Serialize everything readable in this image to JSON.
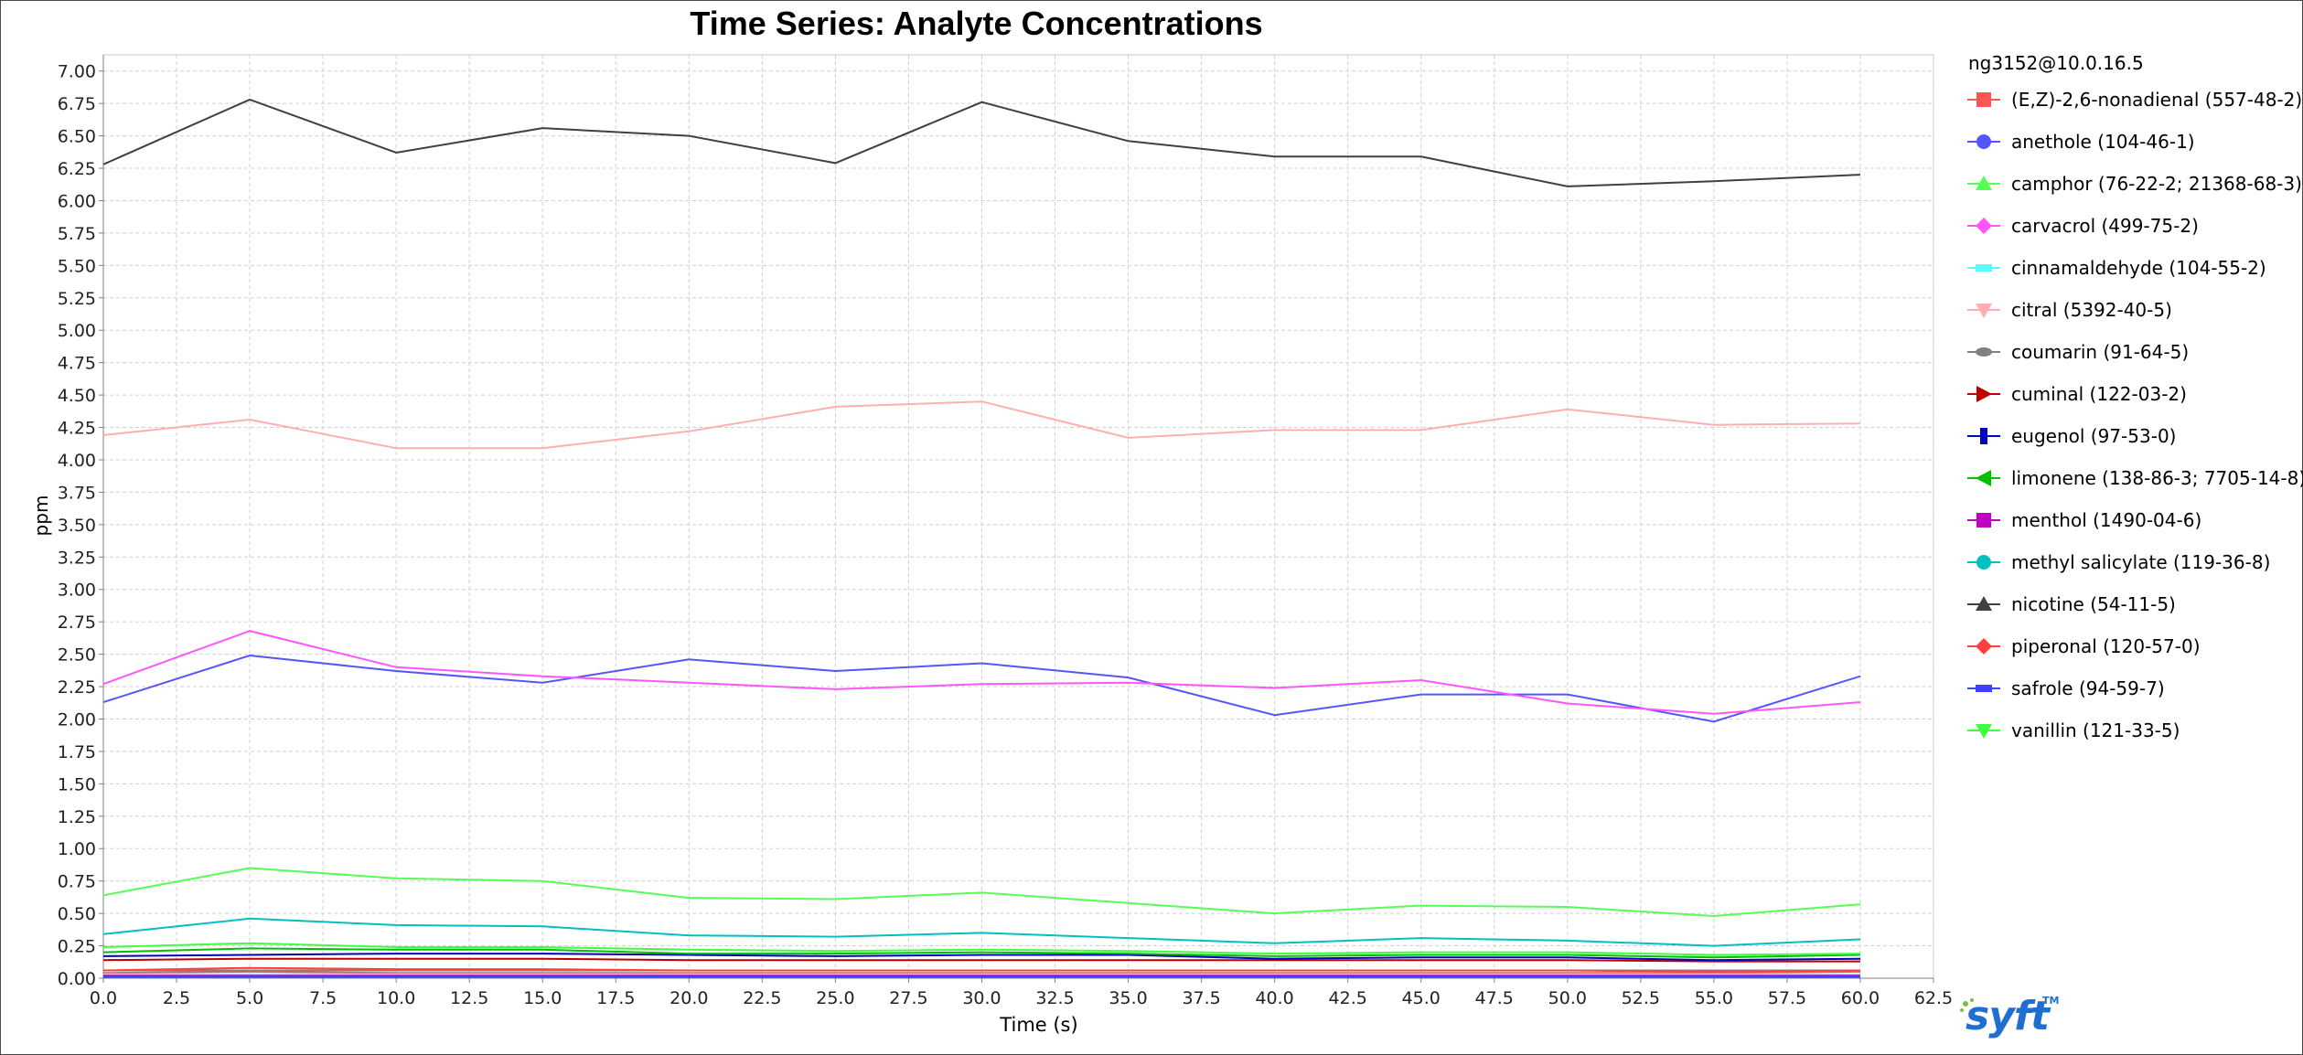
{
  "chart_data": {
    "type": "line",
    "title": "Time Series: Analyte Concentrations",
    "xlabel": "Time (s)",
    "ylabel": "ppm",
    "xlim": [
      0,
      62.5
    ],
    "ylim": [
      0,
      7.125
    ],
    "x_ticks": [
      "0.0",
      "2.5",
      "5.0",
      "7.5",
      "10.0",
      "12.5",
      "15.0",
      "17.5",
      "20.0",
      "22.5",
      "25.0",
      "27.5",
      "30.0",
      "32.5",
      "35.0",
      "37.5",
      "40.0",
      "42.5",
      "45.0",
      "47.5",
      "50.0",
      "52.5",
      "55.0",
      "57.5",
      "60.0",
      "62.5"
    ],
    "y_ticks": [
      "0.00",
      "0.25",
      "0.50",
      "0.75",
      "1.00",
      "1.25",
      "1.50",
      "1.75",
      "2.00",
      "2.25",
      "2.50",
      "2.75",
      "3.00",
      "3.25",
      "3.50",
      "3.75",
      "4.00",
      "4.25",
      "4.50",
      "4.75",
      "5.00",
      "5.25",
      "5.50",
      "5.75",
      "6.00",
      "6.25",
      "6.50",
      "6.75",
      "7.00"
    ],
    "grid": true,
    "legend_position": "right",
    "legend_title": "ng3152@10.0.16.5",
    "x": [
      0,
      5,
      10,
      15,
      20,
      25,
      30,
      35,
      40,
      45,
      50,
      55,
      60
    ],
    "series": [
      {
        "name": "(E,Z)-2,6-nonadienal (557-48-2)",
        "color": "#ff5555",
        "marker": "square",
        "values": [
          0.04,
          0.05,
          0.04,
          0.04,
          0.04,
          0.04,
          0.04,
          0.04,
          0.04,
          0.04,
          0.04,
          0.04,
          0.05
        ]
      },
      {
        "name": "anethole (104-46-1)",
        "color": "#5555ff",
        "marker": "circle",
        "values": [
          2.13,
          2.49,
          2.37,
          2.28,
          2.46,
          2.37,
          2.43,
          2.32,
          2.03,
          2.19,
          2.19,
          1.98,
          2.33
        ]
      },
      {
        "name": "camphor (76-22-2; 21368-68-3)",
        "color": "#55ff55",
        "marker": "triangle-up",
        "values": [
          0.64,
          0.85,
          0.77,
          0.75,
          0.62,
          0.61,
          0.66,
          0.58,
          0.5,
          0.56,
          0.55,
          0.48,
          0.57
        ]
      },
      {
        "name": "carvacrol (499-75-2)",
        "color": "#ff55ff",
        "marker": "diamond",
        "values": [
          2.27,
          2.68,
          2.4,
          2.33,
          2.28,
          2.23,
          2.27,
          2.28,
          2.24,
          2.3,
          2.12,
          2.04,
          2.13
        ]
      },
      {
        "name": "cinnamaldehyde (104-55-2)",
        "color": "#55ffff",
        "marker": "rect-horizontal",
        "values": [
          0.03,
          0.03,
          0.03,
          0.03,
          0.03,
          0.03,
          0.03,
          0.03,
          0.03,
          0.03,
          0.03,
          0.03,
          0.03
        ]
      },
      {
        "name": "citral (5392-40-5)",
        "color": "#ffafaf",
        "marker": "triangle-down",
        "values": [
          4.19,
          4.31,
          4.09,
          4.09,
          4.22,
          4.41,
          4.45,
          4.17,
          4.23,
          4.23,
          4.39,
          4.27,
          4.28
        ]
      },
      {
        "name": "coumarin (91-64-5)",
        "color": "#808080",
        "marker": "ellipse",
        "values": [
          0.06,
          0.06,
          0.06,
          0.06,
          0.06,
          0.06,
          0.06,
          0.06,
          0.06,
          0.06,
          0.06,
          0.06,
          0.06
        ]
      },
      {
        "name": "cuminal (122-03-2)",
        "color": "#c00000",
        "marker": "triangle-right",
        "values": [
          0.14,
          0.15,
          0.15,
          0.15,
          0.14,
          0.14,
          0.14,
          0.14,
          0.14,
          0.14,
          0.14,
          0.13,
          0.13
        ]
      },
      {
        "name": "eugenol (97-53-0)",
        "color": "#0000c0",
        "marker": "rect-vertical",
        "values": [
          0.17,
          0.18,
          0.19,
          0.19,
          0.18,
          0.17,
          0.18,
          0.18,
          0.15,
          0.16,
          0.16,
          0.14,
          0.15
        ]
      },
      {
        "name": "limonene (138-86-3; 7705-14-8)",
        "color": "#00c000",
        "marker": "triangle-left",
        "values": [
          0.2,
          0.23,
          0.22,
          0.22,
          0.19,
          0.19,
          0.2,
          0.19,
          0.17,
          0.18,
          0.18,
          0.16,
          0.18
        ]
      },
      {
        "name": "menthol (1490-04-6)",
        "color": "#c000c0",
        "marker": "square",
        "values": [
          0.02,
          0.02,
          0.02,
          0.02,
          0.02,
          0.02,
          0.02,
          0.02,
          0.02,
          0.02,
          0.02,
          0.02,
          0.02
        ]
      },
      {
        "name": "methyl salicylate (119-36-8)",
        "color": "#00c0c0",
        "marker": "circle",
        "values": [
          0.34,
          0.46,
          0.41,
          0.4,
          0.33,
          0.32,
          0.35,
          0.31,
          0.27,
          0.31,
          0.29,
          0.25,
          0.3
        ]
      },
      {
        "name": "nicotine (54-11-5)",
        "color": "#404040",
        "marker": "triangle-up",
        "values": [
          6.28,
          6.78,
          6.37,
          6.56,
          6.5,
          6.29,
          6.76,
          6.46,
          6.34,
          6.34,
          6.11,
          6.15,
          6.2
        ]
      },
      {
        "name": "piperonal (120-57-0)",
        "color": "#ff4040",
        "marker": "diamond",
        "values": [
          0.06,
          0.08,
          0.07,
          0.07,
          0.06,
          0.06,
          0.06,
          0.06,
          0.06,
          0.06,
          0.06,
          0.05,
          0.06
        ]
      },
      {
        "name": "safrole (94-59-7)",
        "color": "#4040ff",
        "marker": "rect-horizontal",
        "values": [
          0.01,
          0.01,
          0.01,
          0.01,
          0.01,
          0.01,
          0.01,
          0.01,
          0.01,
          0.01,
          0.01,
          0.01,
          0.01
        ]
      },
      {
        "name": "vanillin (121-33-5)",
        "color": "#40ff40",
        "marker": "triangle-down",
        "values": [
          0.24,
          0.27,
          0.24,
          0.24,
          0.22,
          0.21,
          0.22,
          0.21,
          0.19,
          0.2,
          0.2,
          0.18,
          0.19
        ]
      }
    ]
  },
  "logo": {
    "text": "syft",
    "tm": "TM",
    "color": "#1f6fd1"
  }
}
